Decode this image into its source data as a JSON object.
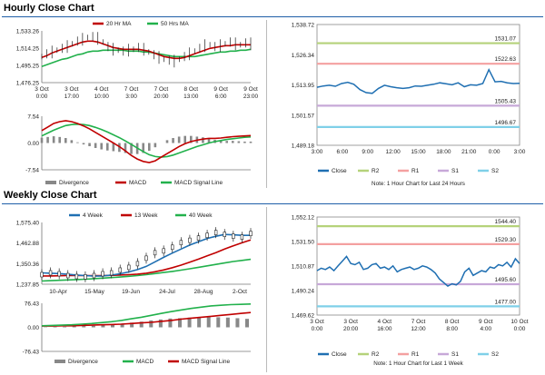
{
  "sections": {
    "hourly_title": "Hourly Close Chart",
    "weekly_title": "Weekly Close Chart"
  },
  "colors": {
    "ma20": "#c00000",
    "ma50": "#22b14c",
    "close": "#1f6fb2",
    "r2": "#b5d27a",
    "r1": "#f4a0a0",
    "s1": "#c7a8d8",
    "s2": "#7fd0e8",
    "macd": "#c00000",
    "signal": "#22b14c",
    "divergence": "#888888",
    "week4": "#1f6fb2",
    "week13": "#c00000",
    "week40": "#22b14c"
  },
  "chart_data": [
    {
      "id": "hourly-price",
      "type": "line",
      "title": "Hourly Close Chart",
      "legend": [
        "20 Hr MA",
        "50 Hrs MA"
      ],
      "y_ticks": [
        "1,533.26",
        "1,514.25",
        "1,495.25",
        "1,476.25"
      ],
      "ylim": [
        1476.25,
        1533.26
      ],
      "x_ticks": [
        [
          "3 Oct",
          "0:00"
        ],
        [
          "3 Oct",
          "17:00"
        ],
        [
          "4 Oct",
          "10:00"
        ],
        [
          "7 Oct",
          "3:00"
        ],
        [
          "7 Oct",
          "20:00"
        ],
        [
          "8 Oct",
          "13:00"
        ],
        [
          "9 Oct",
          "6:00"
        ],
        [
          "9 Oct",
          "23:00"
        ]
      ],
      "series": [
        {
          "name": "Price",
          "values": [
            1505,
            1508,
            1510,
            1512,
            1514,
            1516,
            1519,
            1522,
            1524,
            1526,
            1527,
            1525,
            1521,
            1516,
            1513,
            1512,
            1511,
            1512,
            1513,
            1515,
            1513,
            1510,
            1507,
            1504,
            1502,
            1501,
            1500,
            1502,
            1505,
            1508,
            1511,
            1514,
            1517,
            1518,
            1516,
            1517,
            1519,
            1521,
            1519,
            1518,
            1520,
            1519
          ]
        },
        {
          "name": "20 Hr MA",
          "values": [
            1504,
            1506,
            1509,
            1511,
            1513,
            1515,
            1517,
            1519,
            1521,
            1522,
            1522,
            1521,
            1519,
            1517,
            1515,
            1514,
            1513,
            1513,
            1513,
            1513,
            1512,
            1511,
            1509,
            1507,
            1505,
            1504,
            1503,
            1503,
            1504,
            1506,
            1508,
            1510,
            1512,
            1514,
            1515,
            1516,
            1517,
            1517,
            1518,
            1518,
            1518,
            1518
          ]
        },
        {
          "name": "50 Hrs MA",
          "values": [
            1494,
            1496,
            1498,
            1500,
            1502,
            1503,
            1505,
            1507,
            1508,
            1510,
            1511,
            1511,
            1512,
            1512,
            1512,
            1512,
            1512,
            1511,
            1511,
            1511,
            1510,
            1510,
            1509,
            1508,
            1507,
            1506,
            1505,
            1505,
            1505,
            1505,
            1505,
            1506,
            1507,
            1508,
            1509,
            1510,
            1510,
            1511,
            1511,
            1512,
            1512,
            1513
          ]
        }
      ]
    },
    {
      "id": "hourly-macd",
      "type": "line",
      "y_ticks": [
        "7.54",
        "0.00",
        "-7.54"
      ],
      "ylim": [
        -7.54,
        7.54
      ],
      "legend": [
        "Divergence",
        "MACD",
        "MACD Signal Line"
      ],
      "series": [
        {
          "name": "MACD",
          "values": [
            3.5,
            4.5,
            5.5,
            6.0,
            6.3,
            6.0,
            5.5,
            4.8,
            4.0,
            3.0,
            2.0,
            1.0,
            0.0,
            -1.0,
            -2.2,
            -3.5,
            -4.5,
            -5.2,
            -5.5,
            -5.0,
            -4.0,
            -3.0,
            -2.0,
            -1.0,
            -0.2,
            0.4,
            0.8,
            1.1,
            1.3,
            1.3,
            1.4,
            1.6,
            1.8,
            1.9,
            2.0,
            2.1
          ]
        },
        {
          "name": "MACD Signal Line",
          "values": [
            2.0,
            2.8,
            3.6,
            4.3,
            4.9,
            5.2,
            5.3,
            5.2,
            4.9,
            4.4,
            3.8,
            3.1,
            2.3,
            1.5,
            0.6,
            -0.4,
            -1.4,
            -2.4,
            -3.3,
            -3.8,
            -4.0,
            -3.8,
            -3.4,
            -2.8,
            -2.2,
            -1.6,
            -1.0,
            -0.5,
            0.0,
            0.4,
            0.7,
            1.0,
            1.2,
            1.4,
            1.6,
            1.7
          ]
        },
        {
          "name": "Divergence",
          "values": [
            1.5,
            1.7,
            1.9,
            1.7,
            1.4,
            0.8,
            0.2,
            -0.4,
            -0.9,
            -1.4,
            -1.8,
            -2.1,
            -2.3,
            -2.5,
            -2.8,
            -3.1,
            -3.1,
            -2.8,
            -2.2,
            -1.2,
            0.0,
            0.8,
            1.4,
            1.8,
            2.0,
            2.0,
            1.8,
            1.6,
            1.3,
            0.9,
            0.7,
            0.6,
            0.6,
            0.5,
            0.4,
            0.4
          ]
        }
      ]
    },
    {
      "id": "hourly-pivot",
      "type": "line",
      "y_ticks": [
        "1,538.72",
        "1,526.34",
        "1,513.95",
        "1,501.57",
        "1,489.18"
      ],
      "ylim": [
        1489.18,
        1538.72
      ],
      "x_ticks": [
        "3:00",
        "6:00",
        "9:00",
        "12:00",
        "15:00",
        "18:00",
        "21:00",
        "0:00",
        "3:00"
      ],
      "levels": [
        {
          "name": "R2",
          "value": 1531.07,
          "label": "1531.07"
        },
        {
          "name": "R1",
          "value": 1522.63,
          "label": "1522.63"
        },
        {
          "name": "S1",
          "value": 1505.43,
          "label": "1505.43"
        },
        {
          "name": "S2",
          "value": 1496.67,
          "label": "1496.67"
        }
      ],
      "series": [
        {
          "name": "Close",
          "values": [
            1513,
            1513.5,
            1513.8,
            1513.4,
            1514.5,
            1515,
            1514.2,
            1512,
            1510.8,
            1510.5,
            1512.5,
            1513.8,
            1513.2,
            1512.8,
            1512.5,
            1512.8,
            1513.5,
            1513.4,
            1513.8,
            1514.2,
            1514.8,
            1514.4,
            1514,
            1514.8,
            1513.2,
            1514,
            1513.8,
            1514.5,
            1520.2,
            1515.2,
            1515.4,
            1514.8,
            1514.5,
            1514.6
          ]
        }
      ],
      "legend": [
        "Close",
        "R2",
        "R1",
        "S1",
        "S2"
      ],
      "note": "Note: 1 Hour Chart for Last 24 Hours"
    },
    {
      "id": "weekly-price",
      "type": "line",
      "title": "Weekly Close Chart",
      "legend": [
        "4 Week",
        "13 Week",
        "40 Week"
      ],
      "y_ticks": [
        "1,575.40",
        "1,462.88",
        "1,350.36",
        "1,237.85"
      ],
      "ylim": [
        1237.85,
        1575.4
      ],
      "x_ticks": [
        "10-Apr",
        "15-May",
        "19-Jun",
        "24-Jul",
        "28-Aug",
        "2-Oct"
      ],
      "series": [
        {
          "name": "Price",
          "values": [
            1290,
            1300,
            1295,
            1285,
            1280,
            1278,
            1285,
            1295,
            1300,
            1315,
            1330,
            1350,
            1380,
            1410,
            1420,
            1440,
            1465,
            1478,
            1490,
            1505,
            1520,
            1510,
            1500,
            1495,
            1515
          ]
        },
        {
          "name": "4 Week",
          "values": [
            1300,
            1298,
            1296,
            1292,
            1288,
            1285,
            1282,
            1283,
            1288,
            1295,
            1305,
            1318,
            1335,
            1360,
            1385,
            1408,
            1430,
            1452,
            1470,
            1488,
            1500,
            1510,
            1508,
            1505,
            1505
          ]
        },
        {
          "name": "13 Week",
          "values": [
            1283,
            1283,
            1284,
            1285,
            1285,
            1285,
            1285,
            1285,
            1286,
            1288,
            1290,
            1293,
            1298,
            1306,
            1316,
            1328,
            1342,
            1358,
            1375,
            1393,
            1410,
            1430,
            1448,
            1464,
            1480
          ]
        },
        {
          "name": "40 Week",
          "values": [
            1255,
            1257,
            1259,
            1261,
            1263,
            1265,
            1268,
            1271,
            1274,
            1277,
            1281,
            1285,
            1290,
            1296,
            1302,
            1308,
            1315,
            1322,
            1330,
            1338,
            1346,
            1354,
            1362,
            1368,
            1374
          ]
        }
      ]
    },
    {
      "id": "weekly-macd",
      "type": "line",
      "y_ticks": [
        "76.43",
        "0.00",
        "-76.43"
      ],
      "ylim": [
        -76.43,
        76.43
      ],
      "legend": [
        "Divergence",
        "MACD",
        "MACD Signal Line"
      ],
      "series": [
        {
          "name": "MACD",
          "values": [
            5,
            6,
            7,
            8,
            10,
            12,
            15,
            18,
            22,
            27,
            32,
            38,
            44,
            50,
            55,
            60,
            64,
            68,
            70,
            72,
            73,
            74
          ]
        },
        {
          "name": "MACD Signal Line",
          "values": [
            4,
            4,
            5,
            5,
            6,
            7,
            8,
            9,
            10,
            12,
            14,
            16,
            19,
            22,
            26,
            29,
            32,
            35,
            38,
            41,
            44,
            47
          ]
        },
        {
          "name": "Divergence",
          "values": [
            1,
            2,
            2,
            3,
            4,
            5,
            7,
            9,
            12,
            15,
            18,
            22,
            25,
            28,
            29,
            31,
            32,
            33,
            32,
            31,
            29,
            27
          ]
        }
      ]
    },
    {
      "id": "weekly-pivot",
      "type": "line",
      "y_ticks": [
        "1,552.12",
        "1,531.50",
        "1,510.87",
        "1,490.24",
        "1,469.62"
      ],
      "ylim": [
        1469.62,
        1552.12
      ],
      "x_ticks": [
        [
          "3 Oct",
          "0:00"
        ],
        [
          "3 Oct",
          "20:00"
        ],
        [
          "4 Oct",
          "16:00"
        ],
        [
          "7 Oct",
          "12:00"
        ],
        [
          "8 Oct",
          "8:00"
        ],
        [
          "9 Oct",
          "4:00"
        ],
        [
          "10 Oct",
          "0:00"
        ]
      ],
      "levels": [
        {
          "name": "R2",
          "value": 1544.4,
          "label": "1544.40"
        },
        {
          "name": "R1",
          "value": 1529.3,
          "label": "1529.30"
        },
        {
          "name": "S1",
          "value": 1495.6,
          "label": "1495.60"
        },
        {
          "name": "S2",
          "value": 1477.0,
          "label": "1477.00"
        }
      ],
      "series": [
        {
          "name": "Close",
          "values": [
            1507,
            1509,
            1508,
            1510,
            1507,
            1511,
            1515,
            1519,
            1513,
            1512,
            1514,
            1508,
            1509,
            1512,
            1513,
            1509,
            1510,
            1508,
            1511,
            1506,
            1508,
            1509,
            1510,
            1508,
            1509,
            1511,
            1510,
            1508,
            1505,
            1500,
            1497,
            1494,
            1496,
            1495,
            1498,
            1506,
            1509,
            1503,
            1505,
            1507,
            1506,
            1510,
            1509,
            1512,
            1511,
            1514,
            1510,
            1517,
            1513
          ]
        }
      ],
      "legend": [
        "Close",
        "R2",
        "R1",
        "S1",
        "S2"
      ],
      "note": "Note: 1 Hour Chart for Last 1 Week"
    }
  ]
}
